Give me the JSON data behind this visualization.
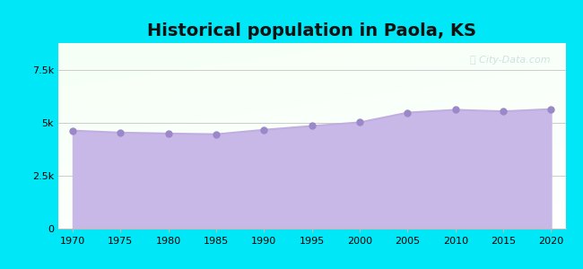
{
  "title": "Historical population in Paola, KS",
  "years": [
    1970,
    1975,
    1980,
    1985,
    1990,
    1995,
    2000,
    2005,
    2010,
    2015,
    2020
  ],
  "population": [
    4622,
    4527,
    4485,
    4451,
    4660,
    4840,
    5011,
    5470,
    5602,
    5530,
    5635
  ],
  "ylim": [
    0,
    8750
  ],
  "yticks": [
    0,
    2500,
    5000,
    7500
  ],
  "ytick_labels": [
    "0",
    "2.5k",
    "5k",
    "7.5k"
  ],
  "xticks": [
    1970,
    1975,
    1980,
    1985,
    1990,
    1995,
    2000,
    2005,
    2010,
    2015,
    2020
  ],
  "line_color": "#c0aee0",
  "fill_color": "#c8b8e8",
  "fill_alpha": 1.0,
  "marker_color": "#9b88c8",
  "marker_size": 5,
  "bg_color_fig": "#00e8f8",
  "grid_color": "#cccccc",
  "title_fontsize": 14,
  "watermark_text": "City-Data.com",
  "watermark_color": "#aacccc",
  "watermark_alpha": 0.55,
  "xlim_left": 1968.5,
  "xlim_right": 2021.5
}
